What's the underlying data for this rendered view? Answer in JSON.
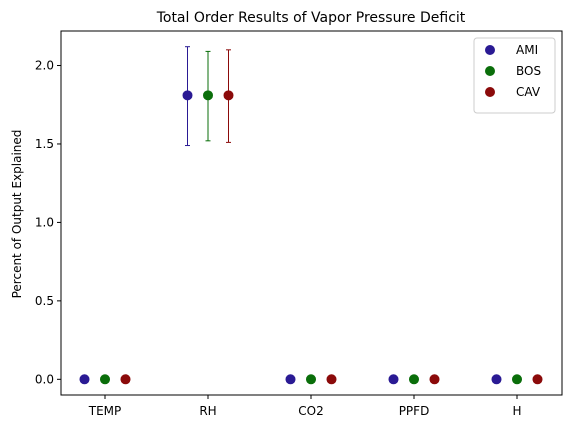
{
  "chart_data": {
    "type": "scatter",
    "title": "Total Order Results of Vapor Pressure Deficit",
    "xlabel": "",
    "ylabel": "Percent of Output Explained",
    "categories": [
      "TEMP",
      "RH",
      "CO2",
      "PPFD",
      "H"
    ],
    "ylim": [
      -0.1,
      2.22
    ],
    "yticks": [
      0.0,
      0.5,
      1.0,
      1.5,
      2.0
    ],
    "ytick_labels": [
      "0.0",
      "0.5",
      "1.0",
      "1.5",
      "2.0"
    ],
    "grid": false,
    "legend_position": "top-right",
    "series": [
      {
        "name": "AMI",
        "color": "#2a1a94",
        "values": [
          0.0,
          1.81,
          0.0,
          0.0,
          0.0
        ],
        "err_low": [
          0.0,
          1.49,
          0.0,
          0.0,
          0.0
        ],
        "err_high": [
          0.0,
          2.12,
          0.0,
          0.0,
          0.0
        ]
      },
      {
        "name": "BOS",
        "color": "#0a6e0a",
        "values": [
          0.0,
          1.81,
          0.0,
          0.0,
          0.0
        ],
        "err_low": [
          0.0,
          1.52,
          0.0,
          0.0,
          0.0
        ],
        "err_high": [
          0.0,
          2.09,
          0.0,
          0.0,
          0.0
        ]
      },
      {
        "name": "CAV",
        "color": "#8b0a0a",
        "values": [
          0.0,
          1.81,
          0.0,
          0.0,
          0.0
        ],
        "err_low": [
          0.0,
          1.51,
          0.0,
          0.0,
          0.0
        ],
        "err_high": [
          0.0,
          2.1,
          0.0,
          0.0,
          0.0
        ]
      }
    ]
  }
}
